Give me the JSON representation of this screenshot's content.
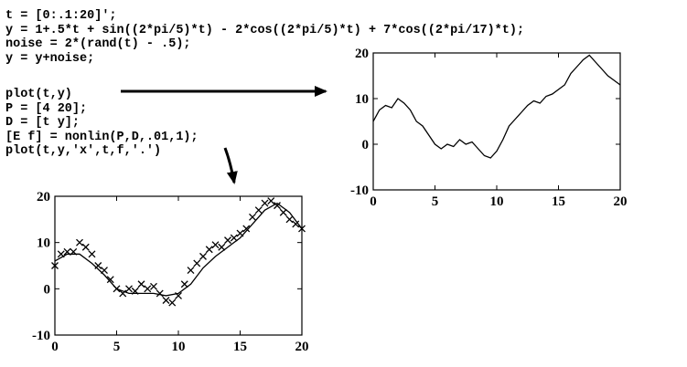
{
  "code": {
    "top_lines": [
      "t = [0:.1:20]';",
      "y = 1+.5*t + sin((2*pi/5)*t) - 2*cos((2*pi/5)*t) + 7*cos((2*pi/17)*t);",
      "noise = 2*(rand(t) - .5);",
      "y = y+noise;"
    ],
    "bottom_lines": [
      "plot(t,y)",
      "P = [4 20];",
      "D = [t y];",
      "[E f] = nonlin(P,D,.01,1);",
      "plot(t,y,'x',t,f,'.')"
    ]
  },
  "colors": {
    "ink": "#000000",
    "background": "#ffffff"
  },
  "chart_data": [
    {
      "type": "line",
      "xlim": [
        0,
        20
      ],
      "ylim": [
        -10,
        20
      ],
      "x_ticks": [
        0,
        5,
        10,
        15,
        20
      ],
      "y_ticks": [
        -10,
        0,
        10,
        20
      ],
      "series": [
        {
          "style": "solid",
          "x": [
            0,
            0.5,
            1,
            1.5,
            2,
            2.5,
            3,
            3.5,
            4,
            4.5,
            5,
            5.5,
            6,
            6.5,
            7,
            7.5,
            8,
            8.5,
            9,
            9.5,
            10,
            10.5,
            11,
            11.5,
            12,
            12.5,
            13,
            13.5,
            14,
            14.5,
            15,
            15.5,
            16,
            16.5,
            17,
            17.5,
            18,
            18.5,
            19,
            19.5,
            20
          ],
          "y": [
            5,
            7.5,
            8.5,
            8,
            10,
            9,
            7.5,
            5,
            4,
            2,
            0,
            -1,
            0,
            -0.5,
            1,
            0,
            0.5,
            -1,
            -2.5,
            -3,
            -1.5,
            1,
            4,
            5.5,
            7,
            8.5,
            9.5,
            9,
            10.5,
            11,
            12,
            13,
            15.5,
            17,
            18.5,
            19.5,
            18,
            16.5,
            15,
            14,
            13
          ]
        }
      ]
    },
    {
      "type": "line",
      "xlim": [
        0,
        20
      ],
      "ylim": [
        -10,
        20
      ],
      "x_ticks": [
        0,
        5,
        10,
        15,
        20
      ],
      "y_ticks": [
        -10,
        0,
        10,
        20
      ],
      "series": [
        {
          "style": "x-markers",
          "x": [
            0,
            0.5,
            1,
            1.5,
            2,
            2.5,
            3,
            3.5,
            4,
            4.5,
            5,
            5.5,
            6,
            6.5,
            7,
            7.5,
            8,
            8.5,
            9,
            9.5,
            10,
            10.5,
            11,
            11.5,
            12,
            12.5,
            13,
            13.5,
            14,
            14.5,
            15,
            15.5,
            16,
            16.5,
            17,
            17.5,
            18,
            18.5,
            19,
            19.5,
            20
          ],
          "y": [
            5,
            7.5,
            8,
            8,
            10,
            9,
            7.5,
            5,
            4,
            2,
            0,
            -1,
            0,
            -0.5,
            1,
            0,
            0.5,
            -1,
            -2.5,
            -3,
            -1.5,
            1,
            4,
            5.5,
            7,
            8.5,
            9.5,
            9,
            10.5,
            11,
            12,
            13,
            15.5,
            17,
            18.5,
            19,
            18,
            16.5,
            15,
            14,
            13
          ]
        },
        {
          "style": "solid",
          "x": [
            0,
            1,
            2,
            3,
            4,
            5,
            6,
            7,
            8,
            9,
            10,
            11,
            12,
            13,
            14,
            15,
            16,
            17,
            18,
            19,
            20
          ],
          "y": [
            6,
            7.5,
            7.5,
            5.5,
            3,
            0,
            -1,
            -1,
            -1,
            -1.5,
            -1,
            1,
            4.5,
            7,
            9,
            11,
            14,
            17,
            18.5,
            16.5,
            13
          ]
        }
      ]
    }
  ]
}
